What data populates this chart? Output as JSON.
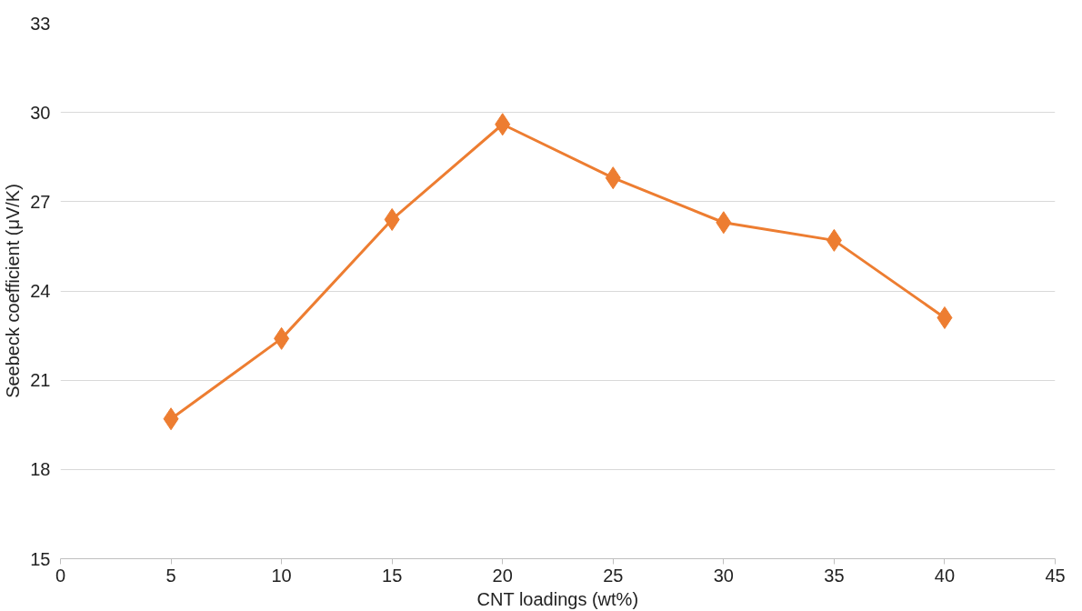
{
  "chart_data": {
    "type": "line",
    "xlabel": "CNT loadings (wt%)",
    "ylabel": "Seebeck coefficient (μV/K)",
    "x": [
      5,
      10,
      15,
      20,
      25,
      30,
      35,
      40
    ],
    "series": [
      {
        "color": "#ed7d31",
        "values": [
          19.7,
          22.4,
          26.4,
          29.6,
          27.8,
          26.3,
          25.7,
          23.1
        ]
      }
    ],
    "xlim": [
      0,
      45
    ],
    "xticks": [
      0,
      5,
      10,
      15,
      20,
      25,
      30,
      35,
      40,
      45
    ],
    "ylim": [
      15,
      33
    ],
    "yticks": [
      15,
      18,
      21,
      24,
      27,
      30,
      33
    ],
    "grid": "y",
    "marker": "diamond",
    "line_style": "solid"
  }
}
